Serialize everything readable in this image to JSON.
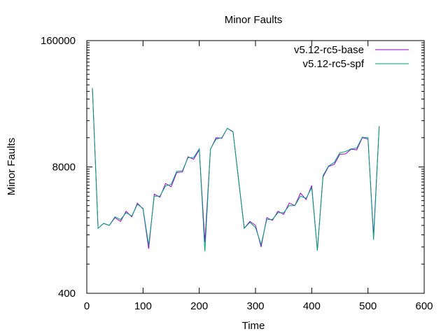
{
  "chart_data": {
    "type": "line",
    "title": "Minor Faults",
    "xlabel": "Time",
    "ylabel": "Minor Faults",
    "xlim": [
      0,
      600
    ],
    "ylim": [
      400,
      160000
    ],
    "yscale": "log",
    "xticks": [
      0,
      100,
      200,
      300,
      400,
      500,
      600
    ],
    "yticks": [
      400,
      8000,
      160000
    ],
    "grid": false,
    "legend_position": "top-right",
    "series": [
      {
        "name": "v5.12-rc5-base",
        "color": "#9400d3",
        "x": [
          10,
          20,
          30,
          40,
          50,
          60,
          70,
          80,
          90,
          100,
          110,
          120,
          130,
          140,
          150,
          160,
          170,
          180,
          190,
          200,
          210,
          220,
          230,
          240,
          250,
          260,
          270,
          280,
          290,
          300,
          310,
          320,
          330,
          340,
          350,
          360,
          370,
          380,
          390,
          400,
          410,
          420,
          430,
          440,
          450,
          460,
          470,
          480,
          490,
          500,
          510,
          520
        ],
        "y": [
          52000,
          1870,
          2100,
          2000,
          2400,
          2200,
          2800,
          2450,
          3400,
          2950,
          1150,
          4200,
          3900,
          5400,
          5000,
          7000,
          7100,
          10200,
          9600,
          12000,
          1350,
          12200,
          16000,
          15800,
          20000,
          18300,
          5900,
          1870,
          2200,
          2000,
          1200,
          2400,
          2250,
          2800,
          2600,
          3400,
          3200,
          4300,
          3700,
          5150,
          1100,
          6300,
          8100,
          8500,
          10800,
          10900,
          12200,
          12000,
          16000,
          15500,
          1550,
          21000
        ]
      },
      {
        "name": "v5.12-rc5-spf",
        "color": "#009e73",
        "x": [
          10,
          20,
          30,
          40,
          50,
          60,
          70,
          80,
          90,
          100,
          110,
          120,
          130,
          140,
          150,
          160,
          170,
          180,
          190,
          200,
          210,
          220,
          230,
          240,
          250,
          260,
          270,
          280,
          290,
          300,
          310,
          320,
          330,
          340,
          350,
          360,
          370,
          380,
          390,
          400,
          410,
          420,
          430,
          440,
          450,
          460,
          470,
          480,
          490,
          500,
          510,
          520
        ],
        "y": [
          52000,
          1870,
          2100,
          2000,
          2450,
          2300,
          2700,
          2500,
          3300,
          3000,
          1250,
          4000,
          4000,
          5100,
          5300,
          7200,
          7300,
          10000,
          10000,
          12300,
          1080,
          12300,
          15500,
          16000,
          20000,
          18500,
          5800,
          1870,
          2150,
          1900,
          1270,
          2300,
          2300,
          2700,
          2700,
          3200,
          3200,
          4000,
          3800,
          4900,
          1100,
          6500,
          8200,
          8900,
          11200,
          11500,
          12300,
          12500,
          16200,
          16000,
          1420,
          21000
        ]
      }
    ]
  }
}
